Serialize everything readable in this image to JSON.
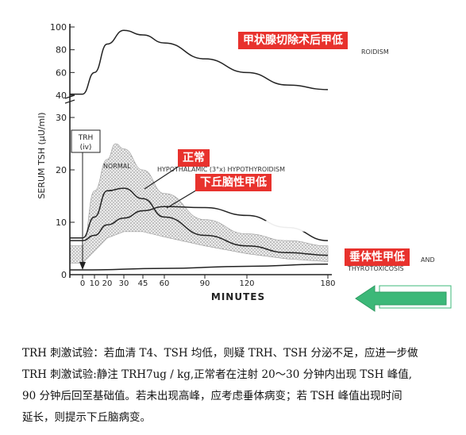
{
  "chart_data": {
    "type": "line",
    "xlabel": "MINUTES",
    "ylabel": "SERUM TSH (μU/ml)",
    "x_ticks": [
      0,
      10,
      20,
      30,
      45,
      60,
      90,
      120,
      180
    ],
    "x_tick_labels": [
      "0",
      "10",
      "20",
      "30",
      "45",
      "60",
      "90",
      "120",
      "180"
    ],
    "y_ticks_lower": [
      0,
      10,
      20,
      30
    ],
    "y_ticks_upper": [
      40,
      60,
      80,
      100
    ],
    "y_tick_labels_lower": [
      "0",
      "10",
      "20",
      "30"
    ],
    "y_tick_labels_upper": [
      "40",
      "60",
      "80",
      "100"
    ],
    "trh_label": [
      "TRH",
      "(iv)"
    ],
    "series": [
      {
        "name": "PRIMARY HYPOTHYROIDISM",
        "label_partial": "ROIDISM",
        "points": [
          [
            -10,
            41
          ],
          [
            0,
            41
          ],
          [
            10,
            60
          ],
          [
            20,
            85
          ],
          [
            30,
            97
          ],
          [
            45,
            93
          ],
          [
            60,
            86
          ],
          [
            90,
            72
          ],
          [
            120,
            60
          ],
          [
            150,
            49
          ],
          [
            180,
            45
          ]
        ]
      },
      {
        "name": "NORMAL",
        "label": "NORMAL",
        "points": [
          [
            -10,
            7
          ],
          [
            0,
            7
          ],
          [
            10,
            11
          ],
          [
            20,
            16
          ],
          [
            30,
            16.5
          ],
          [
            45,
            14.5
          ],
          [
            60,
            11
          ],
          [
            90,
            7.5
          ],
          [
            120,
            5.5
          ],
          [
            150,
            4.2
          ],
          [
            180,
            3.7
          ]
        ]
      },
      {
        "name": "HYPOTHALAMIC (3°x) HYPOTHYROIDISM",
        "label": "HYPOTHALAMIC (3°x) HYPOTHYROIDISM",
        "points": [
          [
            -10,
            6.5
          ],
          [
            0,
            6.5
          ],
          [
            10,
            7.5
          ],
          [
            20,
            9.5
          ],
          [
            30,
            10.8
          ],
          [
            45,
            12.2
          ],
          [
            60,
            13.0
          ],
          [
            90,
            12.8
          ],
          [
            120,
            11.3
          ],
          [
            150,
            9
          ],
          [
            180,
            6.5
          ]
        ]
      },
      {
        "name": "HYPOPITUITARISM AND THYROTOXICOSIS",
        "label_partial": [
          "AND",
          "THYROTOXICOSIS"
        ],
        "points": [
          [
            -10,
            0.9
          ],
          [
            0,
            0.9
          ],
          [
            60,
            1.2
          ],
          [
            120,
            1.6
          ],
          [
            180,
            2.0
          ]
        ]
      }
    ],
    "normal_range_band": {
      "upper": [
        [
          -10,
          5.5
        ],
        [
          0,
          5.5
        ],
        [
          10,
          16
        ],
        [
          20,
          22
        ],
        [
          25,
          25
        ],
        [
          30,
          24
        ],
        [
          45,
          20
        ],
        [
          60,
          15.5
        ],
        [
          90,
          10.5
        ],
        [
          120,
          7.8
        ],
        [
          150,
          6.5
        ],
        [
          180,
          5.5
        ]
      ],
      "lower": [
        [
          -10,
          2.2
        ],
        [
          0,
          2.2
        ],
        [
          10,
          4.5
        ],
        [
          20,
          7
        ],
        [
          30,
          8.2
        ],
        [
          45,
          8.2
        ],
        [
          60,
          7.2
        ],
        [
          90,
          5.5
        ],
        [
          120,
          4
        ],
        [
          150,
          3
        ],
        [
          180,
          2.5
        ]
      ]
    },
    "annotations": [
      "甲状腺切除术后甲低",
      "正常",
      "下丘脑性甲低",
      "垂体性甲低"
    ],
    "annotation_color": "#e8322d",
    "arrow_color": "#3cb878"
  },
  "caption": [
    "TRH 刺激试验：若血清 T4、TSH 均低，则疑 TRH、TSH 分泌不足，应进一步做",
    "TRH 刺激试验:静注 TRH7ug / kg,正常者在注射 20～30 分钟内出现 TSH 峰值,",
    "90 分钟后回至基础值。若未出现高峰，应考虑垂体病变；若 TSH 峰值出现时间",
    "延长，则提示下丘脑病变。"
  ]
}
